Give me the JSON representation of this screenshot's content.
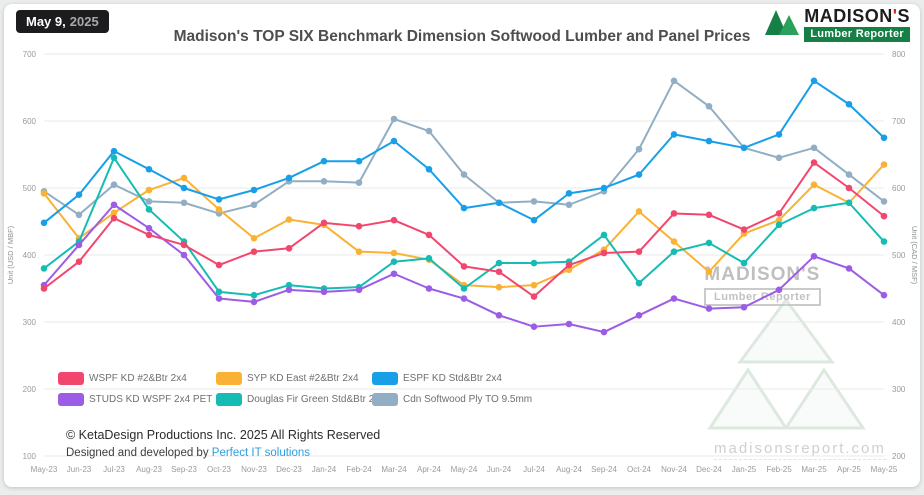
{
  "header": {
    "date_label": "May 9,",
    "date_year": "2025",
    "title": "Madison's TOP SIX Benchmark Dimension Softwood Lumber and Panel Prices",
    "logo": {
      "part1": "MADISON",
      "apos": "'",
      "part2": "S",
      "tagline": "Lumber Reporter"
    }
  },
  "footer": {
    "copyright": "© KetaDesign Productions Inc. 2025 All Rights Reserved",
    "credit_prefix": "Designed and developed by ",
    "credit_link": "Perfect IT solutions"
  },
  "watermark": {
    "brand": "MADISON'S",
    "tagline": "Lumber Reporter",
    "site": "madisonsreport.com"
  },
  "chart_data": {
    "type": "line",
    "title": "Madison's TOP SIX Benchmark Dimension Softwood Lumber and Panel Prices",
    "grid": "horizontal",
    "legend_position": "bottom-left",
    "categories": [
      "May-23",
      "Jun-23",
      "Jul-23",
      "Aug-23",
      "Sep-23",
      "Oct-23",
      "Nov-23",
      "Dec-23",
      "Jan-24",
      "Feb-24",
      "Mar-24",
      "Apr-24",
      "May-24",
      "Jun-24",
      "Jul-24",
      "Aug-24",
      "Sep-24",
      "Oct-24",
      "Nov-24",
      "Dec-24",
      "Jan-25",
      "Feb-25",
      "Mar-25",
      "Apr-25",
      "May-25"
    ],
    "left_axis": {
      "label": "Unit (USD / MBF)",
      "min": 100,
      "max": 700,
      "step": 100
    },
    "right_axis": {
      "label": "Unit (CAD / MSF)",
      "min": 200,
      "max": 800,
      "step": 100
    },
    "series": [
      {
        "name": "WSPF KD #2&Btr 2x4",
        "color": "#F1476F",
        "axis": "left",
        "values": [
          350,
          390,
          455,
          430,
          415,
          385,
          405,
          410,
          448,
          443,
          452,
          430,
          383,
          375,
          338,
          385,
          403,
          405,
          462,
          460,
          438,
          462,
          538,
          500,
          458
        ]
      },
      {
        "name": "SYP KD East #2&Btr 2x4",
        "color": "#F9B233",
        "axis": "left",
        "values": [
          492,
          425,
          463,
          497,
          515,
          468,
          425,
          453,
          445,
          405,
          403,
          393,
          355,
          352,
          355,
          378,
          408,
          465,
          420,
          375,
          432,
          452,
          505,
          478,
          535
        ]
      },
      {
        "name": "ESPF KD Std&Btr 2x4",
        "color": "#189FE8",
        "axis": "left",
        "values": [
          448,
          490,
          555,
          528,
          500,
          483,
          497,
          515,
          540,
          540,
          570,
          528,
          470,
          478,
          452,
          492,
          500,
          520,
          580,
          570,
          560,
          580,
          660,
          625,
          575
        ]
      },
      {
        "name": "STUDS KD WSPF 2x4 PET",
        "color": "#9D5CE6",
        "axis": "left",
        "values": [
          355,
          415,
          475,
          440,
          400,
          335,
          330,
          348,
          345,
          348,
          372,
          350,
          335,
          310,
          293,
          297,
          285,
          310,
          335,
          320,
          322,
          348,
          398,
          380,
          340
        ]
      },
      {
        "name": "Douglas Fir Green Std&Btr 2x4",
        "color": "#16BCB4",
        "axis": "left",
        "values": [
          380,
          420,
          545,
          468,
          420,
          345,
          340,
          355,
          350,
          352,
          390,
          395,
          350,
          388,
          388,
          390,
          430,
          358,
          405,
          418,
          388,
          445,
          470,
          478,
          420
        ]
      },
      {
        "name": "Cdn Softwood Ply TO 9.5mm",
        "color": "#91AEC4",
        "axis": "right",
        "values": [
          595,
          560,
          605,
          580,
          578,
          562,
          575,
          610,
          610,
          608,
          703,
          685,
          620,
          578,
          580,
          575,
          595,
          658,
          760,
          722,
          660,
          645,
          660,
          620,
          580
        ]
      }
    ]
  }
}
